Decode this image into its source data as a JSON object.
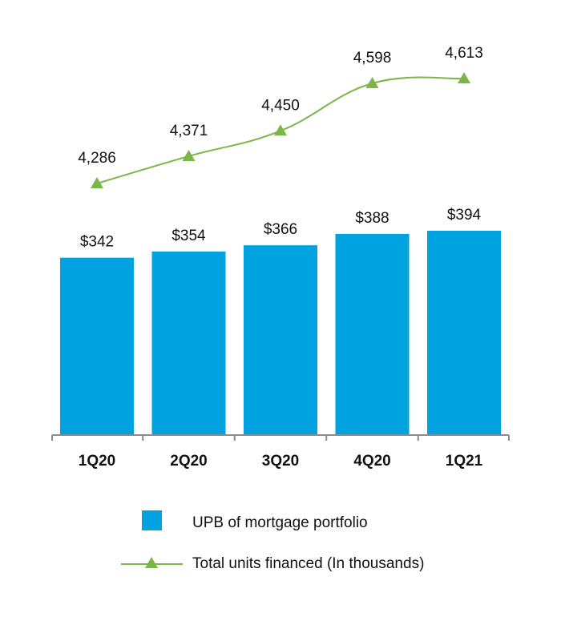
{
  "chart_data": {
    "type": "bar",
    "categories": [
      "1Q20",
      "2Q20",
      "3Q20",
      "4Q20",
      "1Q21"
    ],
    "series": [
      {
        "name": "UPB of mortgage portfolio",
        "type": "bar",
        "values": [
          342,
          354,
          366,
          388,
          394
        ],
        "labels": [
          "$342",
          "$354",
          "$366",
          "$388",
          "$394"
        ],
        "color": "#00a3e0"
      },
      {
        "name": "Total units financed (In thousands)",
        "type": "line",
        "values": [
          4286,
          4371,
          4450,
          4598,
          4613
        ],
        "labels": [
          "4,286",
          "4,371",
          "4,450",
          "4,598",
          "4,613"
        ],
        "color": "#7ab648"
      }
    ],
    "bar_axis_range": [
      0,
      394
    ],
    "line_axis_range": [
      4286,
      4613
    ],
    "grid": false,
    "legend_position": "bottom"
  },
  "colors": {
    "axis": "#8c8c8c",
    "text": "#111111"
  }
}
